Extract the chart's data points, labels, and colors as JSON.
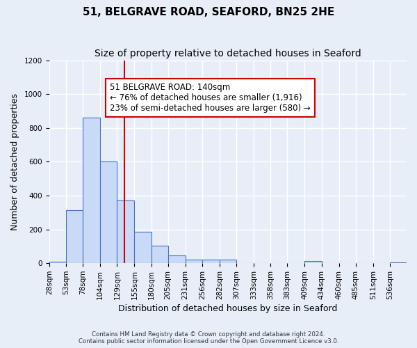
{
  "title": "51, BELGRAVE ROAD, SEAFORD, BN25 2HE",
  "subtitle": "Size of property relative to detached houses in Seaford",
  "xlabel": "Distribution of detached houses by size in Seaford",
  "ylabel": "Number of detached properties",
  "bar_edges": [
    28,
    53,
    78,
    104,
    129,
    155,
    180,
    205,
    231,
    256,
    282,
    307,
    333,
    358,
    383,
    409,
    434,
    460,
    485,
    511,
    536,
    561
  ],
  "bar_heights": [
    10,
    315,
    860,
    600,
    370,
    185,
    105,
    45,
    20,
    20,
    20,
    0,
    0,
    0,
    0,
    15,
    0,
    0,
    0,
    0,
    5
  ],
  "bar_color": "#c9daf8",
  "bar_edge_color": "#4472c4",
  "property_line_x": 140,
  "property_line_color": "#cc0000",
  "annotation_box_edge_color": "#cc0000",
  "annotation_text_line1": "51 BELGRAVE ROAD: 140sqm",
  "annotation_text_line2": "← 76% of detached houses are smaller (1,916)",
  "annotation_text_line3": "23% of semi-detached houses are larger (580) →",
  "ylim": [
    0,
    1200
  ],
  "yticks": [
    0,
    200,
    400,
    600,
    800,
    1000,
    1200
  ],
  "footer_line1": "Contains HM Land Registry data © Crown copyright and database right 2024.",
  "footer_line2": "Contains public sector information licensed under the Open Government Licence v3.0.",
  "bg_color": "#e8eef8",
  "plot_bg_color": "#e8eef8",
  "grid_color": "#ffffff",
  "title_fontsize": 11,
  "subtitle_fontsize": 10,
  "axis_label_fontsize": 9,
  "tick_label_fontsize": 7.5,
  "annotation_fontsize": 8.5
}
